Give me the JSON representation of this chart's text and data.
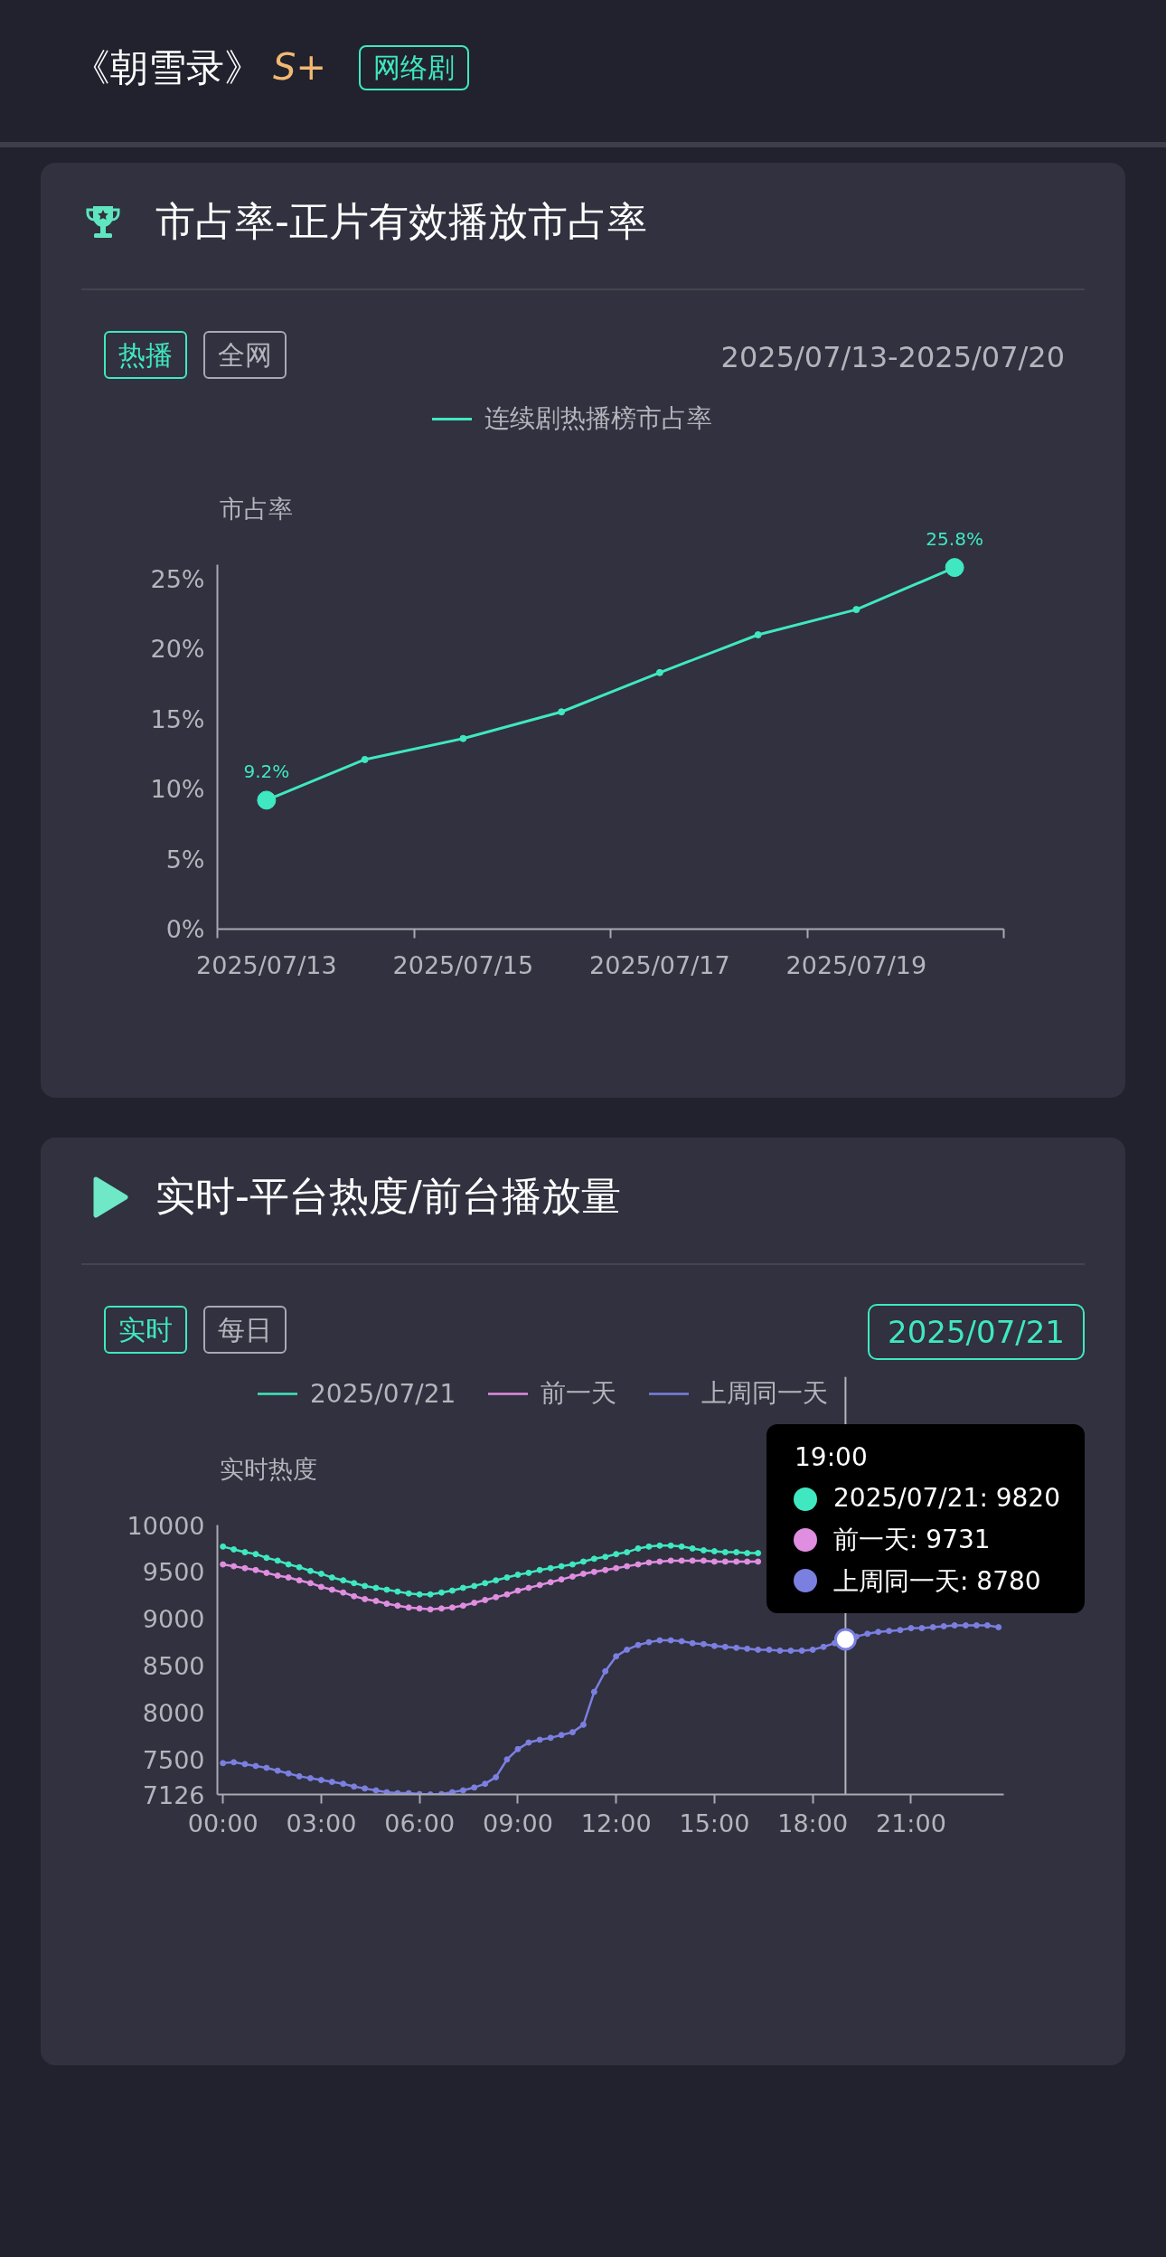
{
  "chart_data": [
    {
      "type": "line",
      "title": "市占率-正片有效播放市占率",
      "subtitle": "2025/07/13-2025/07/20",
      "ylabel": "市占率",
      "annotations": [
        "《朝雪录》",
        "S+",
        "网络剧",
        "热播",
        "全网"
      ],
      "categories": [
        "2025/07/13",
        null,
        "2025/07/15",
        null,
        "2025/07/17",
        null,
        "2025/07/19",
        null
      ],
      "series": [
        {
          "name": "连续剧热播榜市占率",
          "color": "#3fe8c0",
          "values": [
            9.2,
            12.1,
            13.6,
            15.5,
            18.3,
            21.0,
            22.8,
            25.8
          ],
          "value_labels": [
            "9.2%",
            null,
            null,
            null,
            null,
            null,
            null,
            "25.8%"
          ]
        }
      ],
      "ylim": [
        0,
        26
      ],
      "yticks": [
        {
          "value": 0,
          "label": "0%"
        },
        {
          "value": 5,
          "label": "5%"
        },
        {
          "value": 10,
          "label": "10%"
        },
        {
          "value": 15,
          "label": "15%"
        },
        {
          "value": 20,
          "label": "20%"
        },
        {
          "value": 25,
          "label": "25%"
        }
      ],
      "legend": "top",
      "marker": "circle"
    },
    {
      "type": "line",
      "title": "实时-平台热度/前台播放量",
      "subtitle": "2025/07/21",
      "ylabel": "实时热度",
      "annotations": [
        "实时",
        "每日",
        "19:00",
        "2025/07/21: 9820",
        "前一天: 9731",
        "上周同一天: 8780"
      ],
      "x": [
        0,
        0.33,
        0.67,
        1,
        1.33,
        1.67,
        2,
        2.33,
        2.67,
        3,
        3.33,
        3.67,
        4,
        4.33,
        4.67,
        5,
        5.33,
        5.67,
        6,
        6.33,
        6.67,
        7,
        7.33,
        7.67,
        8,
        8.33,
        8.67,
        9,
        9.33,
        9.67,
        10,
        10.33,
        10.67,
        11,
        11.33,
        11.67,
        12,
        12.33,
        12.67,
        13,
        13.33,
        13.67,
        14,
        14.33,
        14.67,
        15,
        15.33,
        15.67,
        16,
        16.33,
        16.67,
        17,
        17.33,
        17.67,
        18,
        18.33,
        18.67,
        19,
        19.33,
        19.67,
        20,
        20.33,
        20.67,
        21,
        21.33,
        21.67,
        22,
        22.33,
        22.67,
        23,
        23.33,
        23.67
      ],
      "series": [
        {
          "name": "2025/07/21",
          "color": "#3fe8c0",
          "values": [
            9770,
            9740,
            9710,
            9690,
            9650,
            9620,
            9580,
            9550,
            9510,
            9480,
            9440,
            9410,
            9380,
            9350,
            9330,
            9310,
            9290,
            9270,
            9260,
            9260,
            9280,
            9300,
            9330,
            9350,
            9380,
            9410,
            9440,
            9470,
            9490,
            9520,
            9540,
            9560,
            9580,
            9610,
            9640,
            9660,
            9690,
            9710,
            9750,
            9770,
            9780,
            9780,
            9770,
            9750,
            9730,
            9720,
            9710,
            9710,
            9700,
            9700,
            null,
            null,
            null,
            null,
            null,
            null,
            null,
            null,
            null,
            null,
            null,
            null,
            null,
            null,
            null,
            null,
            null,
            null,
            null,
            null,
            null,
            null
          ]
        },
        {
          "name": "前一天",
          "color": "#e08ee0",
          "values": [
            9580,
            9560,
            9540,
            9520,
            9490,
            9460,
            9440,
            9410,
            9380,
            9340,
            9310,
            9280,
            9240,
            9210,
            9190,
            9160,
            9140,
            9120,
            9110,
            9100,
            9110,
            9120,
            9140,
            9170,
            9200,
            9230,
            9260,
            9300,
            9330,
            9360,
            9390,
            9420,
            9450,
            9480,
            9500,
            9520,
            9540,
            9560,
            9580,
            9600,
            9610,
            9620,
            9620,
            9620,
            9620,
            9610,
            9610,
            9610,
            9610,
            9610,
            null,
            null,
            null,
            null,
            null,
            null,
            null,
            null,
            null,
            null,
            null,
            null,
            null,
            null,
            null,
            null,
            null,
            null,
            null,
            null,
            null,
            null
          ]
        },
        {
          "name": "上周同一天",
          "color": "#7b7fe0",
          "values": [
            7460,
            7470,
            7450,
            7430,
            7410,
            7380,
            7350,
            7320,
            7300,
            7280,
            7260,
            7240,
            7210,
            7190,
            7170,
            7150,
            7140,
            7140,
            7130,
            7126,
            7130,
            7150,
            7170,
            7200,
            7240,
            7310,
            7500,
            7610,
            7680,
            7710,
            7730,
            7760,
            7790,
            7870,
            8220,
            8440,
            8600,
            8670,
            8720,
            8750,
            8770,
            8770,
            8760,
            8740,
            8730,
            8710,
            8700,
            8690,
            8680,
            8670,
            8670,
            8660,
            8660,
            8660,
            8670,
            8700,
            8740,
            8780,
            8810,
            8840,
            8860,
            8870,
            8880,
            8900,
            8900,
            8910,
            8920,
            8930,
            8930,
            8930,
            8930,
            8910
          ]
        }
      ],
      "xlim": [
        -0.17,
        23.83
      ],
      "xticks": [
        {
          "value": 0,
          "label": "00:00"
        },
        {
          "value": 3,
          "label": "03:00"
        },
        {
          "value": 6,
          "label": "06:00"
        },
        {
          "value": 9,
          "label": "09:00"
        },
        {
          "value": 12,
          "label": "12:00"
        },
        {
          "value": 15,
          "label": "15:00"
        },
        {
          "value": 18,
          "label": "18:00"
        },
        {
          "value": 21,
          "label": "21:00"
        }
      ],
      "ylim": [
        7126,
        10000
      ],
      "yticks": [
        7126,
        7500,
        8000,
        8500,
        9000,
        9500,
        10000
      ],
      "ref_lines": [
        {
          "axis": "x",
          "value": 19,
          "color": "#b4b4bc"
        }
      ],
      "legend": "top",
      "marker": "circle"
    }
  ]
}
